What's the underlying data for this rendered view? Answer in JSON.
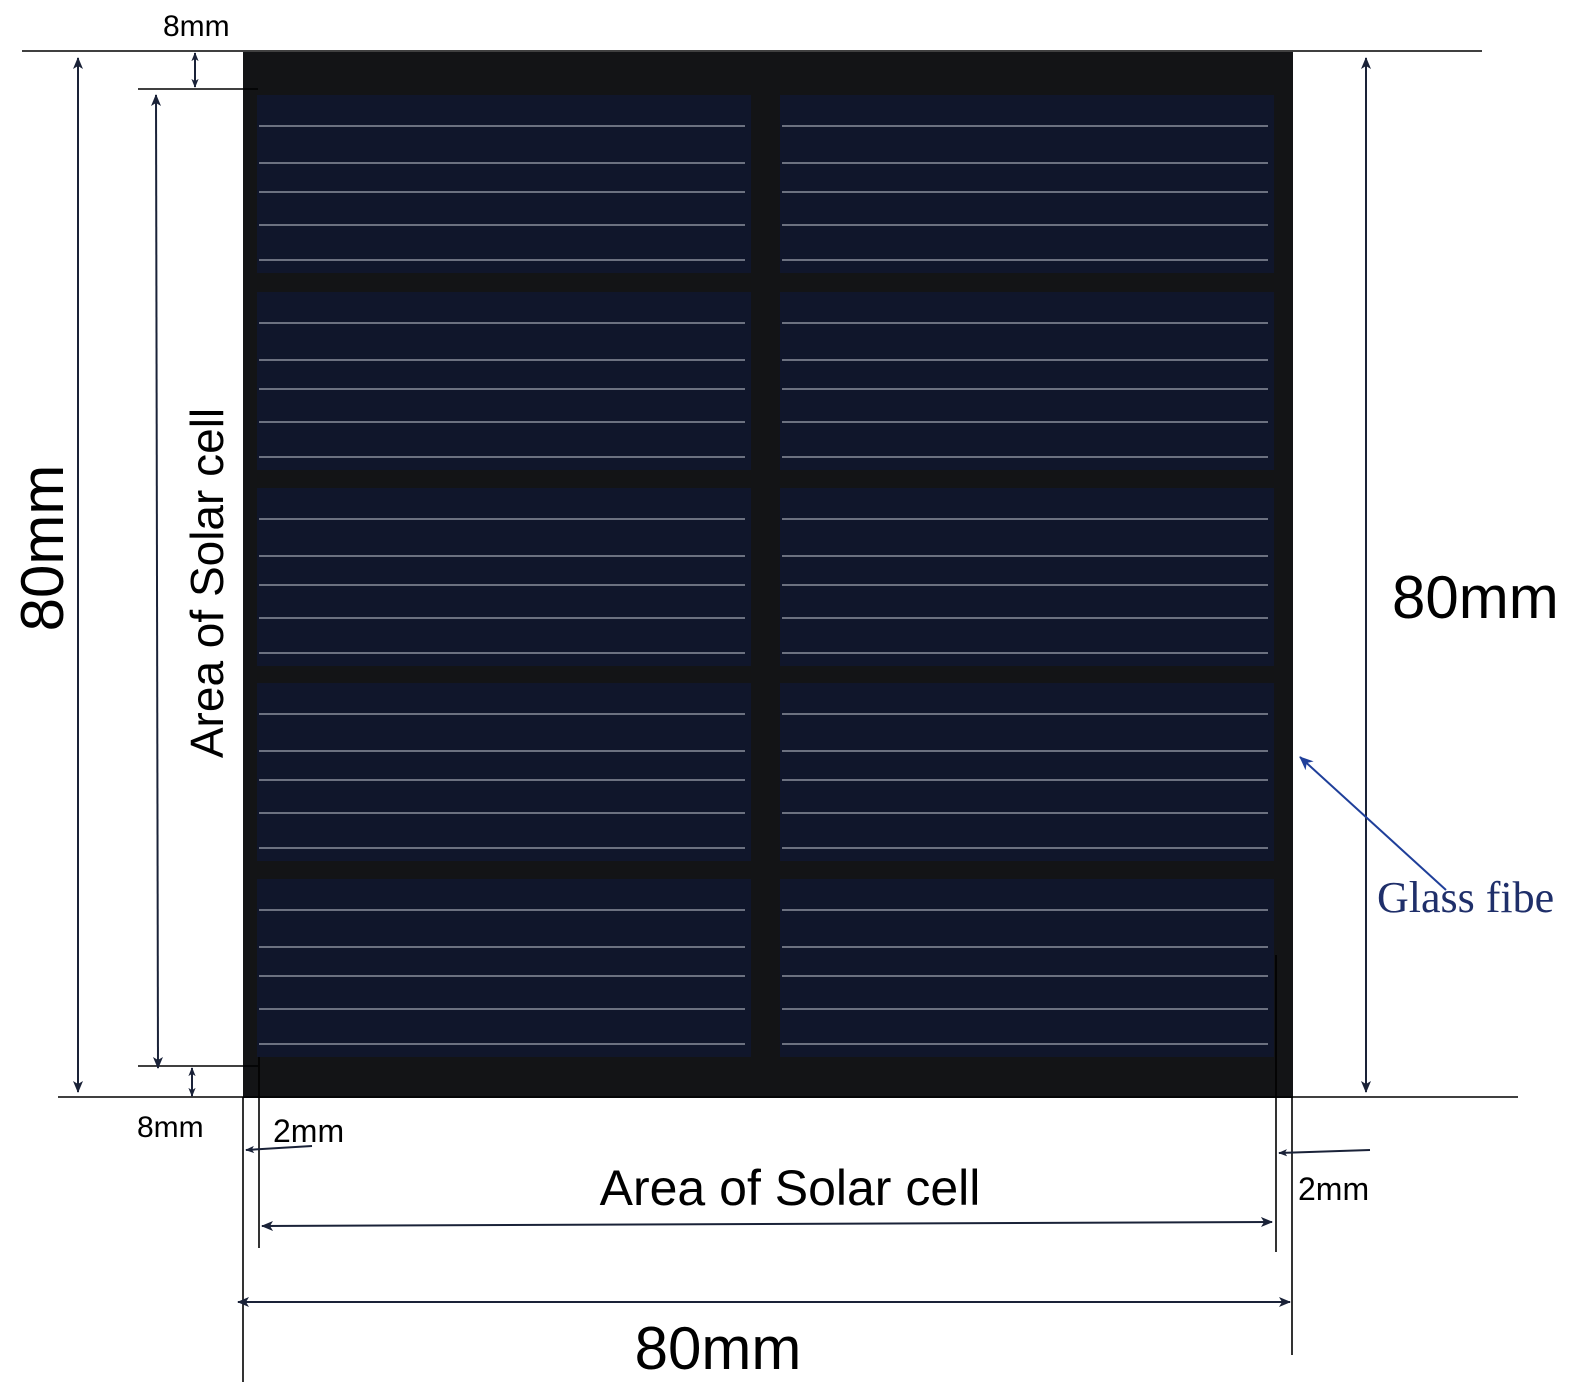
{
  "labels": {
    "top_gap": "8mm",
    "bottom_gap": "8mm",
    "left_height": "80mm",
    "right_height": "80mm",
    "area_vertical": "Area of Solar cell",
    "area_horizontal": "Area of Solar cell",
    "left_margin": "2mm",
    "right_margin": "2mm",
    "bottom_width": "80mm",
    "glass_fiber": "Glass fibe"
  },
  "panel": {
    "columns": 2,
    "rows": 5,
    "busbars_per_cell": 5
  },
  "colors": {
    "frame": "#131416",
    "cell": "#10162b",
    "busbar": "#8a8f9c",
    "dimension_line": "#1a2238",
    "pointer": "#1f3f9a",
    "pointer_text": "#1f2f6a"
  }
}
